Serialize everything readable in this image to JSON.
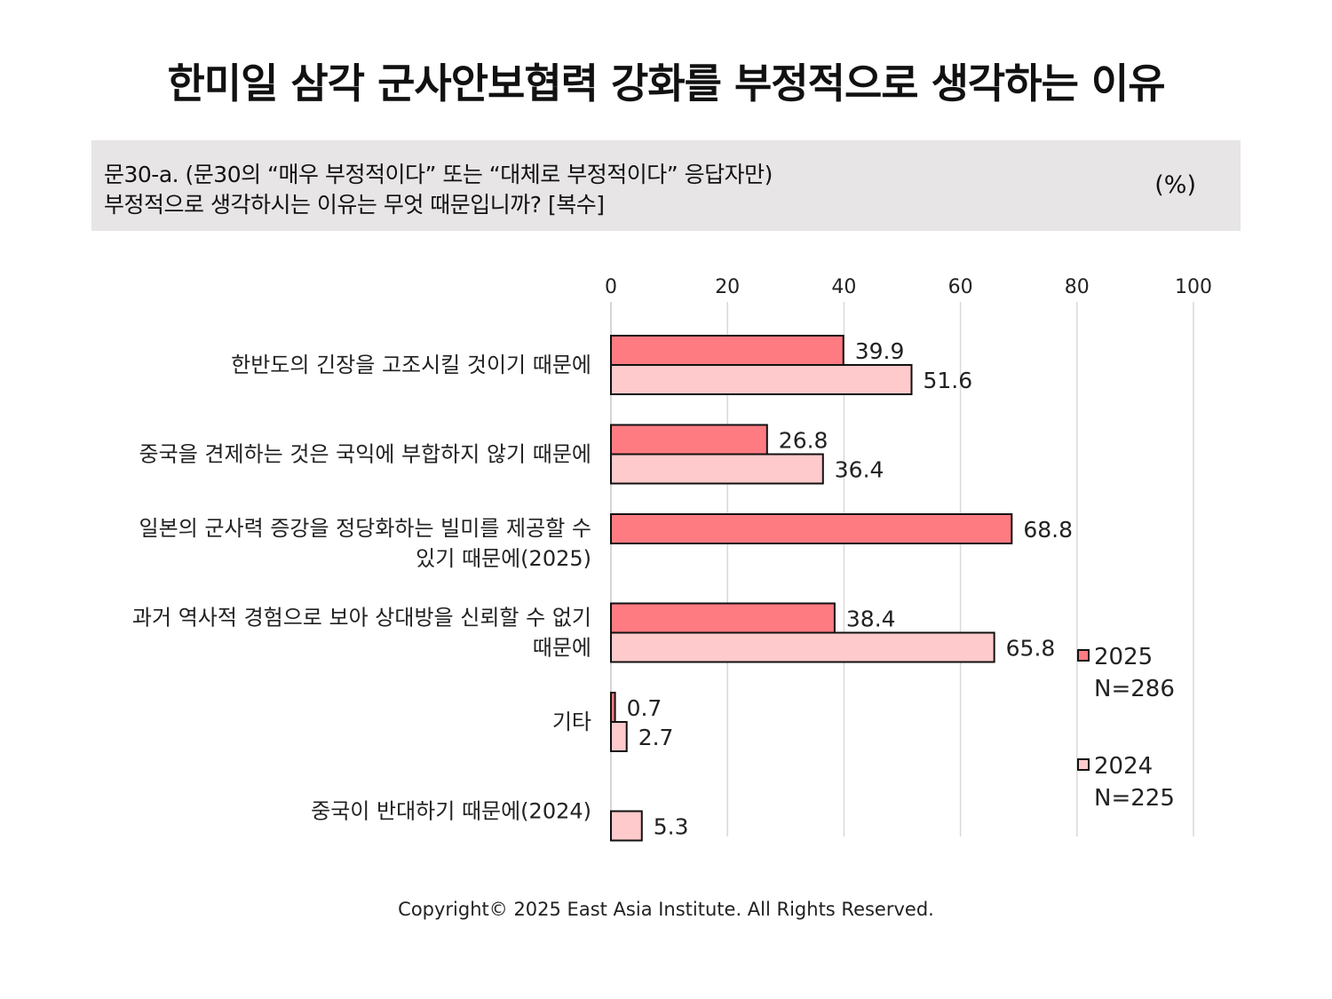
{
  "title": "한미일 삼각 군사안보협력 강화를 부정적으로 생각하는 이유",
  "question": {
    "line1": "문30-a. (문30의 “매우 부정적이다” 또는 “대체로 부정적이다” 응답자만)",
    "line2": "부정적으로 생각하시는 이유는 무엇 때문입니까? [복수]",
    "unit": "(%)"
  },
  "footer": "Copyright© 2025 East Asia Institute. All Rights Reserved.",
  "colors": {
    "series_2025": "#ff7b82",
    "series_2024": "#ffcacb",
    "bar_stroke": "#111111",
    "grid": "#d9d9d9"
  },
  "chart_data": {
    "type": "bar",
    "orientation": "horizontal",
    "categories": [
      [
        "한반도의 긴장을 고조시킬 것이기 때문에"
      ],
      [
        "중국을 견제하는 것은 국익에 부합하지 않기 때문에"
      ],
      [
        "일본의 군사력 증강을 정당화하는 빌미를 제공할 수",
        "있기 때문에(2025)"
      ],
      [
        "과거 역사적 경험으로 보아 상대방을 신뢰할 수 없기",
        "때문에"
      ],
      [
        "기타"
      ],
      [
        "중국이 반대하기 때문에(2024)"
      ]
    ],
    "series": [
      {
        "name": "2025",
        "n_label": "N=286",
        "values": [
          39.9,
          26.8,
          68.8,
          38.4,
          0.7,
          null
        ]
      },
      {
        "name": "2024",
        "n_label": "N=225",
        "values": [
          51.6,
          36.4,
          null,
          65.8,
          2.7,
          5.3
        ]
      }
    ],
    "xlim": [
      0,
      100
    ],
    "xticks": [
      0,
      20,
      40,
      60,
      80,
      100
    ],
    "grid": true,
    "axis_position": "top",
    "legend": "right"
  }
}
